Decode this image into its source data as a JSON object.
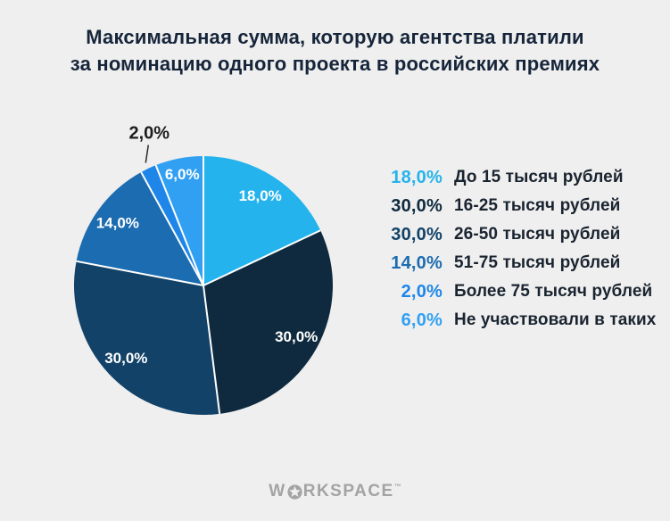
{
  "title": {
    "line1": "Максимальная сумма, которую агентства платили",
    "line2": "за номинацию одного проекта в российских премиях"
  },
  "chart_data": {
    "type": "pie",
    "title": "Максимальная сумма, которую агентства платили за номинацию одного проекта в российских премиях",
    "unit": "%",
    "start_angle_deg": 0,
    "direction": "clockwise",
    "legend_position": "right",
    "slices": [
      {
        "label": "До 15 тысяч рублей",
        "value": 18.0,
        "display": "18,0%",
        "color": "#24b3ec",
        "label_placement": "inside"
      },
      {
        "label": "16-25 тысяч рублей",
        "value": 30.0,
        "display": "30,0%",
        "color": "#0f2a3e",
        "label_placement": "inside"
      },
      {
        "label": "26-50 тысяч рублей",
        "value": 30.0,
        "display": "30,0%",
        "color": "#124268",
        "label_placement": "inside"
      },
      {
        "label": "51-75 тысяч рублей",
        "value": 14.0,
        "display": "14,0%",
        "color": "#1b6cb0",
        "label_placement": "inside"
      },
      {
        "label": "Более 75 тысяч рублей",
        "value": 2.0,
        "display": "2,0%",
        "color": "#1e86e8",
        "label_placement": "outside"
      },
      {
        "label": "Не участвовали в таких",
        "value": 6.0,
        "display": "6,0%",
        "color": "#31a0f2",
        "label_placement": "inside"
      }
    ]
  },
  "footer": {
    "logo_prefix": "W",
    "logo_suffix": "RKSPACE",
    "trademark": "™"
  },
  "colors": {
    "background": "#efefef",
    "title_text": "#16253a",
    "legend_text": "#1a2430",
    "inside_label": "#ffffff",
    "outside_label": "#1d1d1f",
    "callout_line": "#2a2a2a",
    "separator": "#ffffff",
    "logo": "#a3a3a3"
  }
}
